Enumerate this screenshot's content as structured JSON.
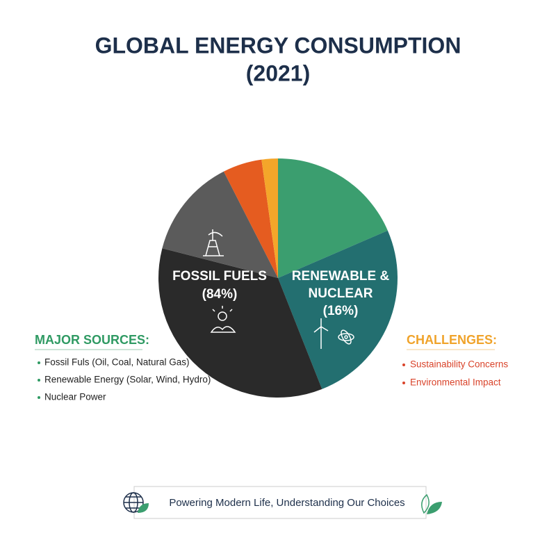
{
  "chart_data": {
    "type": "pie",
    "title": "GLOBAL ENERGY CONSUMPTION",
    "subtitle": "(2021)",
    "values": [
      18.5,
      25.5,
      35,
      13.5,
      5.3,
      2.2
    ],
    "colors": [
      "#3b9e6f",
      "#236f70",
      "#2a2a2a",
      "#5b5b5b",
      "#e55c20",
      "#f4a62a"
    ],
    "annotations": [
      "FOSSIL FUELS",
      "(84%)",
      "RENEWABLE &",
      "NUCLEAR",
      "(16%)"
    ]
  },
  "major_sources": {
    "heading": "MAJOR SOURCES:",
    "items": [
      "Fossil Fuls (Oil, Coal, Natural Gas)",
      "Renewable Energy (Solar, Wind, Hydro)",
      "Nuclear Power"
    ]
  },
  "challenges": {
    "heading": "CHALLENGES:",
    "items": [
      "Sustainability Concerns",
      "Environmental Impact"
    ]
  },
  "footer": "Powering Modern Life, Understanding Our Choices"
}
